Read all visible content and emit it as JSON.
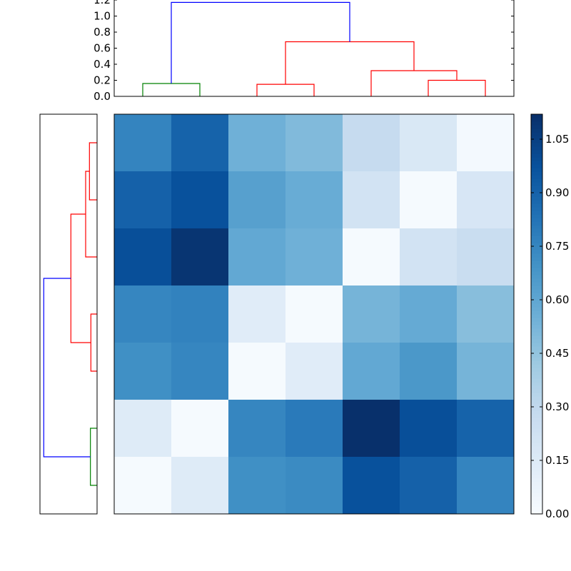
{
  "chart_data": [
    {
      "type": "heatmap",
      "title": "",
      "xlabel": "",
      "ylabel": "",
      "grid": false,
      "rows": 7,
      "cols": 7,
      "colormap": "Blues",
      "values": [
        [
          0.76,
          0.9,
          0.55,
          0.5,
          0.28,
          0.17,
          0.02
        ],
        [
          0.91,
          0.98,
          0.63,
          0.57,
          0.21,
          0.01,
          0.18
        ],
        [
          0.99,
          1.1,
          0.59,
          0.55,
          0.01,
          0.21,
          0.26
        ],
        [
          0.75,
          0.77,
          0.13,
          0.01,
          0.53,
          0.58,
          0.48
        ],
        [
          0.71,
          0.75,
          0.01,
          0.13,
          0.59,
          0.67,
          0.53
        ],
        [
          0.14,
          0.01,
          0.75,
          0.8,
          1.12,
          0.99,
          0.9
        ],
        [
          0.01,
          0.14,
          0.71,
          0.73,
          0.98,
          0.91,
          0.76
        ]
      ]
    },
    {
      "type": "colorbar",
      "vmin": 0.0,
      "vmax": 1.12,
      "ticks": [
        "0.00",
        "0.15",
        "0.30",
        "0.45",
        "0.60",
        "0.75",
        "0.90",
        "1.05"
      ],
      "tick_values": [
        0.0,
        0.15,
        0.3,
        0.45,
        0.6,
        0.75,
        0.9,
        1.05
      ]
    },
    {
      "type": "dendrogram",
      "orientation": "top",
      "ylim": [
        0,
        1.2
      ],
      "yticks": [
        "0.0",
        "0.2",
        "0.4",
        "0.6",
        "0.8",
        "1.0",
        "1.2"
      ],
      "ytick_values": [
        0.0,
        0.2,
        0.4,
        0.6,
        0.8,
        1.0,
        1.2
      ],
      "leaves": 7,
      "links": [
        {
          "left": [
            0.5,
            0.0
          ],
          "top": 0.16,
          "right": [
            1.5,
            0.0
          ],
          "color": "#008000"
        },
        {
          "left": [
            2.5,
            0.0
          ],
          "top": 0.15,
          "right": [
            3.5,
            0.0
          ],
          "color": "#ff0000"
        },
        {
          "left": [
            5.5,
            0.0
          ],
          "top": 0.2,
          "right": [
            6.5,
            0.0
          ],
          "color": "#ff0000"
        },
        {
          "left": [
            4.5,
            0.0
          ],
          "top": 0.32,
          "right": [
            6.0,
            0.2
          ],
          "color": "#ff0000"
        },
        {
          "left": [
            3.0,
            0.15
          ],
          "top": 0.68,
          "right": [
            5.25,
            0.32
          ],
          "color": "#ff0000"
        },
        {
          "left": [
            1.0,
            0.16
          ],
          "top": 1.17,
          "right": [
            4.125,
            0.68
          ],
          "color": "#0000ff"
        }
      ]
    },
    {
      "type": "dendrogram",
      "orientation": "left",
      "xlim": [
        1.2,
        0
      ],
      "leaves": 7,
      "links": [
        {
          "left": [
            0.5,
            0.0
          ],
          "top": 0.16,
          "right": [
            1.5,
            0.0
          ],
          "color": "#ff0000"
        },
        {
          "left": [
            3.5,
            0.0
          ],
          "top": 0.13,
          "right": [
            4.5,
            0.0
          ],
          "color": "#ff0000"
        },
        {
          "left": [
            2.5,
            0.0
          ],
          "top": 0.24,
          "right": [
            1.0,
            0.16
          ],
          "color": "#ff0000"
        },
        {
          "left": [
            1.75,
            0.24
          ],
          "top": 0.55,
          "right": [
            4.0,
            0.13
          ],
          "color": "#ff0000"
        },
        {
          "left": [
            5.5,
            0.0
          ],
          "top": 0.14,
          "right": [
            6.5,
            0.0
          ],
          "color": "#008000"
        },
        {
          "left": [
            2.875,
            0.55
          ],
          "top": 1.12,
          "right": [
            6.0,
            0.14
          ],
          "color": "#0000ff"
        }
      ]
    }
  ]
}
